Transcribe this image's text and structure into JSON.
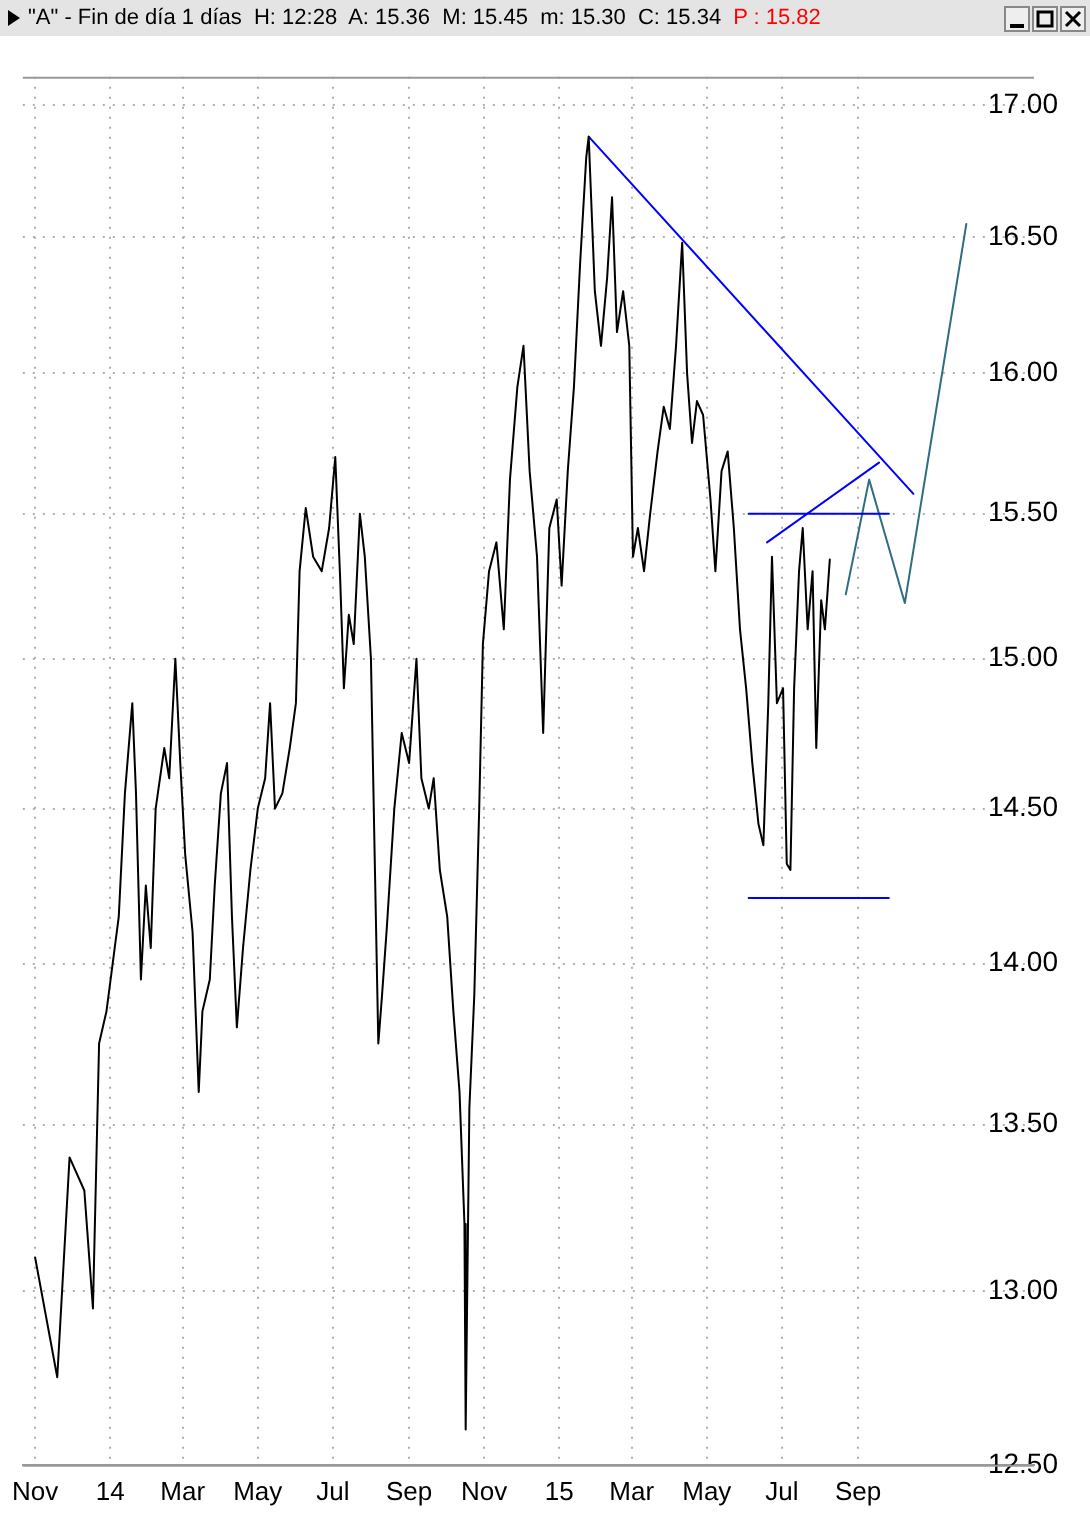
{
  "chart_data": {
    "type": "line",
    "title": "\"A\" - Fin de día 1 días  H: 12:28  A: 15.36  M: 15.45  m: 15.30  C: 15.34",
    "subtitle": "P : 15.82",
    "log": "y",
    "grid": true,
    "legend": false,
    "marker": "none",
    "xlim": [
      "2013-10-22",
      "2016-01-22"
    ],
    "xticks": [
      {
        "value": "2013-11-01",
        "label": "Nov"
      },
      {
        "value": "2014-01-01",
        "label": "14"
      },
      {
        "value": "2014-03-01",
        "label": "Mar"
      },
      {
        "value": "2014-05-01",
        "label": "May"
      },
      {
        "value": "2014-07-01",
        "label": "Jul"
      },
      {
        "value": "2014-09-01",
        "label": "Sep"
      },
      {
        "value": "2014-11-01",
        "label": "Nov"
      },
      {
        "value": "2015-01-01",
        "label": "15"
      },
      {
        "value": "2015-03-01",
        "label": "Mar"
      },
      {
        "value": "2015-05-01",
        "label": "May"
      },
      {
        "value": "2015-07-01",
        "label": "Jul"
      },
      {
        "value": "2015-09-01",
        "label": "Sep"
      }
    ],
    "ylim": [
      12.5,
      17.11
    ],
    "yticks": [
      {
        "value": 12.5,
        "label": "12.50"
      },
      {
        "value": 13,
        "label": "13.00"
      },
      {
        "value": 13.5,
        "label": "13.50"
      },
      {
        "value": 14,
        "label": "14.00"
      },
      {
        "value": 14.5,
        "label": "14.50"
      },
      {
        "value": 15,
        "label": "15.00"
      },
      {
        "value": 15.5,
        "label": "15.50"
      },
      {
        "value": 16,
        "label": "16.00"
      },
      {
        "value": 16.5,
        "label": "16.50"
      },
      {
        "value": 17,
        "label": "17.00"
      }
    ],
    "series": [
      {
        "color": "#000000",
        "x": [
          "2013-11-01",
          "2013-11-19",
          "2013-11-29",
          "2013-12-11",
          "2013-12-18",
          "2013-12-23",
          "2013-12-29",
          "2014-01-08",
          "2014-01-13",
          "2014-01-19",
          "2014-01-22",
          "2014-01-26",
          "2014-01-30",
          "2014-02-03",
          "2014-02-07",
          "2014-02-14",
          "2014-02-18",
          "2014-02-23",
          "2014-02-27",
          "2014-03-03",
          "2014-03-09",
          "2014-03-14",
          "2014-03-17",
          "2014-03-23",
          "2014-03-27",
          "2014-04-01",
          "2014-04-06",
          "2014-04-10",
          "2014-04-14",
          "2014-04-19",
          "2014-04-25",
          "2014-05-01",
          "2014-05-07",
          "2014-05-11",
          "2014-05-15",
          "2014-05-21",
          "2014-05-27",
          "2014-06-01",
          "2014-06-04",
          "2014-06-09",
          "2014-06-15",
          "2014-06-22",
          "2014-06-28",
          "2014-07-03",
          "2014-07-07",
          "2014-07-10",
          "2014-07-14",
          "2014-07-18",
          "2014-07-23",
          "2014-07-27",
          "2014-08-01",
          "2014-08-04",
          "2014-08-07",
          "2014-08-10",
          "2014-08-14",
          "2014-08-20",
          "2014-08-26",
          "2014-09-01",
          "2014-09-07",
          "2014-09-11",
          "2014-09-17",
          "2014-09-21",
          "2014-09-26",
          "2014-10-02",
          "2014-10-07",
          "2014-10-12",
          "2014-10-16",
          "2014-10-17",
          "2014-10-20",
          "2014-10-24",
          "2014-10-28",
          "2014-10-31",
          "2014-11-05",
          "2014-11-11",
          "2014-11-17",
          "2014-11-22",
          "2014-11-28",
          "2014-12-03",
          "2014-12-08",
          "2014-12-14",
          "2014-12-19",
          "2014-12-24",
          "2014-12-30",
          "2015-01-03",
          "2015-01-08",
          "2015-01-13",
          "2015-01-18",
          "2015-01-23",
          "2015-01-25",
          "2015-01-30",
          "2015-02-04",
          "2015-02-09",
          "2015-02-13",
          "2015-02-17",
          "2015-02-22",
          "2015-02-27",
          "2015-03-02",
          "2015-03-06",
          "2015-03-11",
          "2015-03-16",
          "2015-03-22",
          "2015-03-27",
          "2015-04-01",
          "2015-04-06",
          "2015-04-11",
          "2015-04-15",
          "2015-04-19",
          "2015-04-23",
          "2015-04-28",
          "2015-05-04",
          "2015-05-08",
          "2015-05-13",
          "2015-05-18",
          "2015-05-23",
          "2015-05-28",
          "2015-06-02",
          "2015-06-07",
          "2015-06-12",
          "2015-06-16",
          "2015-06-20",
          "2015-06-23",
          "2015-06-27",
          "2015-07-02",
          "2015-07-05",
          "2015-07-08",
          "2015-07-11",
          "2015-07-15",
          "2015-07-18",
          "2015-07-22",
          "2015-07-26",
          "2015-07-29",
          "2015-08-02",
          "2015-08-05",
          "2015-08-09"
        ],
        "values": [
          13.1,
          12.75,
          13.4,
          13.3,
          12.95,
          13.75,
          13.85,
          14.15,
          14.55,
          14.85,
          14.55,
          13.95,
          14.25,
          14.05,
          14.5,
          14.7,
          14.6,
          15.0,
          14.65,
          14.35,
          14.1,
          13.6,
          13.85,
          13.95,
          14.25,
          14.55,
          14.65,
          14.15,
          13.8,
          14.05,
          14.3,
          14.5,
          14.6,
          14.85,
          14.5,
          14.55,
          14.7,
          14.85,
          15.3,
          15.52,
          15.35,
          15.3,
          15.45,
          15.7,
          15.27,
          14.9,
          15.15,
          15.05,
          15.5,
          15.35,
          15.0,
          14.35,
          13.75,
          13.9,
          14.12,
          14.5,
          14.75,
          14.65,
          15.0,
          14.6,
          14.5,
          14.6,
          14.3,
          14.15,
          13.85,
          13.6,
          13.2,
          12.6,
          13.55,
          13.9,
          14.5,
          15.05,
          15.3,
          15.4,
          15.1,
          15.62,
          15.95,
          16.1,
          15.65,
          15.35,
          14.75,
          15.45,
          15.55,
          15.25,
          15.65,
          15.95,
          16.4,
          16.8,
          16.88,
          16.3,
          16.1,
          16.35,
          16.65,
          16.15,
          16.3,
          16.1,
          15.35,
          15.45,
          15.3,
          15.5,
          15.72,
          15.88,
          15.8,
          16.1,
          16.48,
          16.0,
          15.75,
          15.9,
          15.85,
          15.55,
          15.3,
          15.65,
          15.72,
          15.45,
          15.1,
          14.9,
          14.65,
          14.45,
          14.38,
          14.85,
          15.35,
          14.85,
          14.9,
          14.32,
          14.3,
          14.9,
          15.3,
          15.45,
          15.1,
          15.3,
          14.7,
          15.2,
          15.1,
          15.34
        ]
      },
      {
        "color": "#0000ff",
        "x": [
          "2015-01-25",
          "2015-10-16"
        ],
        "values": [
          16.88,
          15.57
        ]
      },
      {
        "color": "#0000ff",
        "x": [
          "2015-06-04",
          "2015-09-26"
        ],
        "values": [
          15.5,
          15.5
        ]
      },
      {
        "color": "#0000ff",
        "x": [
          "2015-06-04",
          "2015-09-26"
        ],
        "values": [
          14.21,
          14.21
        ]
      },
      {
        "color": "#0000ff",
        "x": [
          "2015-06-19",
          "2015-09-18"
        ],
        "values": [
          15.4,
          15.68
        ]
      },
      {
        "color": "#2e6e80",
        "x": [
          "2015-08-22",
          "2015-09-10",
          "2015-10-09",
          "2015-11-28"
        ],
        "values": [
          15.22,
          15.62,
          15.19,
          16.55
        ]
      }
    ]
  }
}
